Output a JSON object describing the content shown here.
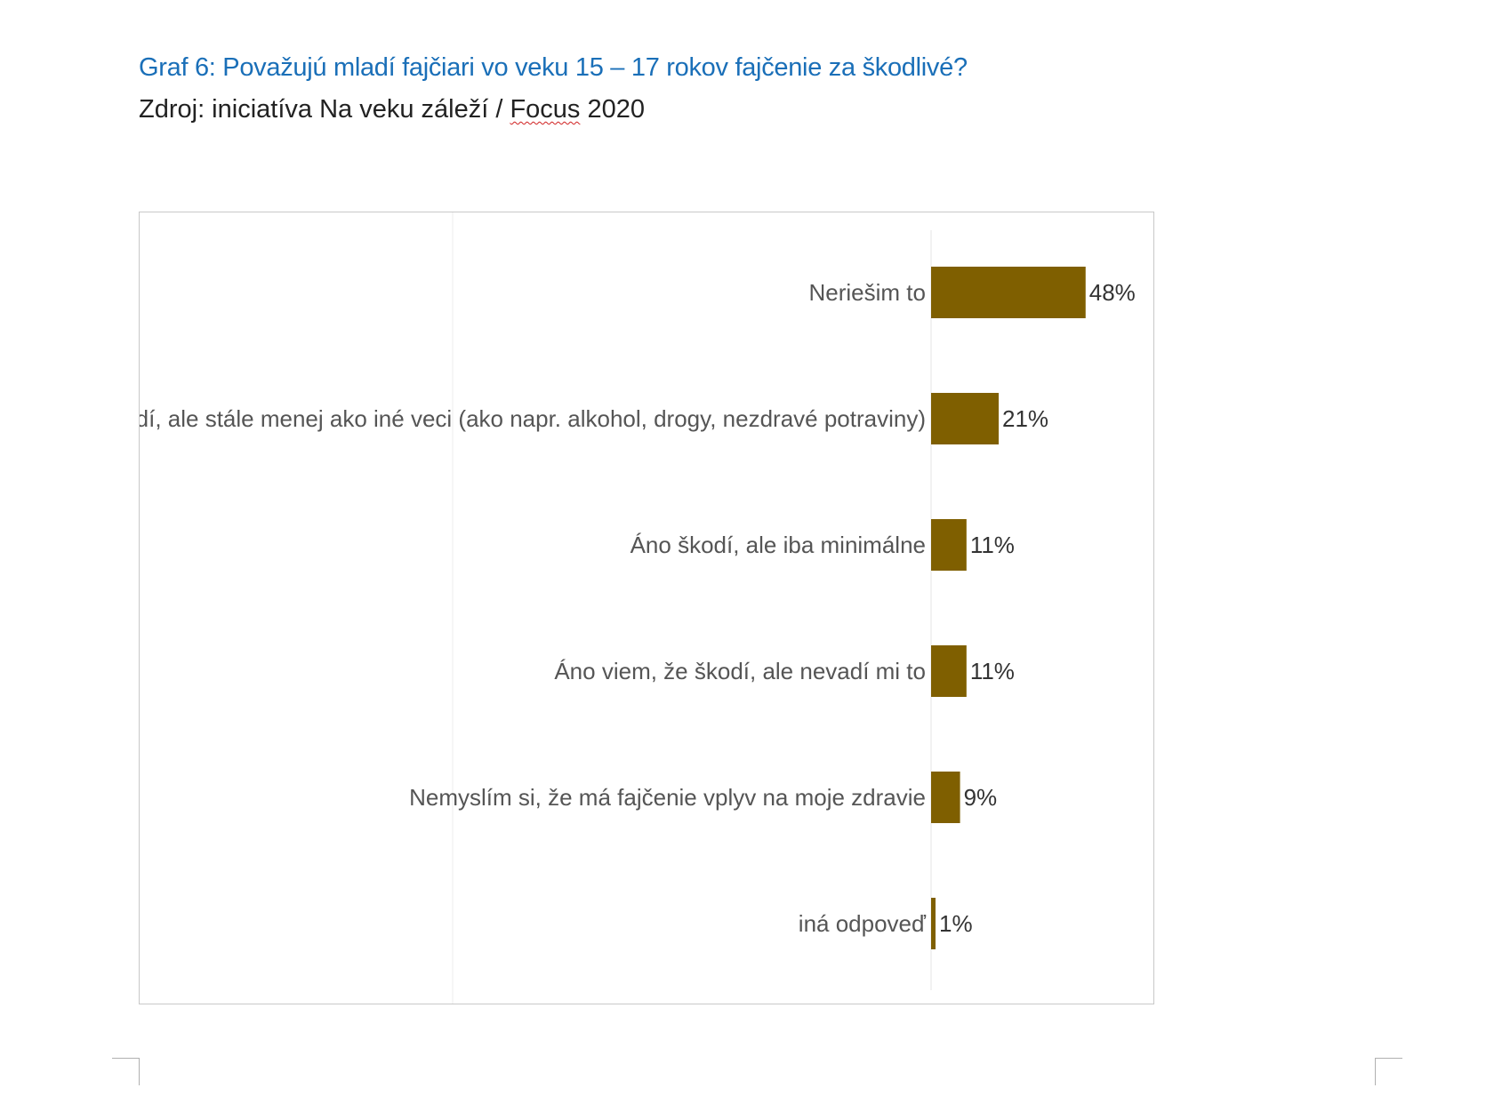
{
  "document": {
    "title": "Graf 6: Považujú mladí fajčiari vo veku 15 – 17 rokov fajčenie za škodlivé?",
    "source_prefix": "Zdroj: iniciatíva Na veku záleží / ",
    "source_word": "Focus",
    "source_suffix": " 2020"
  },
  "colors": {
    "bar": "#7f5f00",
    "title": "#1a6fb8"
  },
  "chart_data": {
    "type": "bar",
    "orientation": "horizontal",
    "title": "",
    "xlabel": "",
    "ylabel": "",
    "xlim": [
      0,
      60
    ],
    "grid": false,
    "legend": "none",
    "categories": [
      "Neriešim to",
      "Áno škodí, ale stále menej ako iné veci (ako napr. alkohol, drogy, nezdravé potraviny)",
      "Áno škodí, ale iba minimálne",
      "Áno viem, že škodí, ale nevadí mi to",
      "Nemyslím si, že má fajčenie vplyv na moje zdravie",
      "iná odpoveď"
    ],
    "values": [
      48,
      21,
      11,
      11,
      9,
      1
    ],
    "value_labels": [
      "48%",
      "21%",
      "11%",
      "11%",
      "9%",
      "1%"
    ]
  }
}
